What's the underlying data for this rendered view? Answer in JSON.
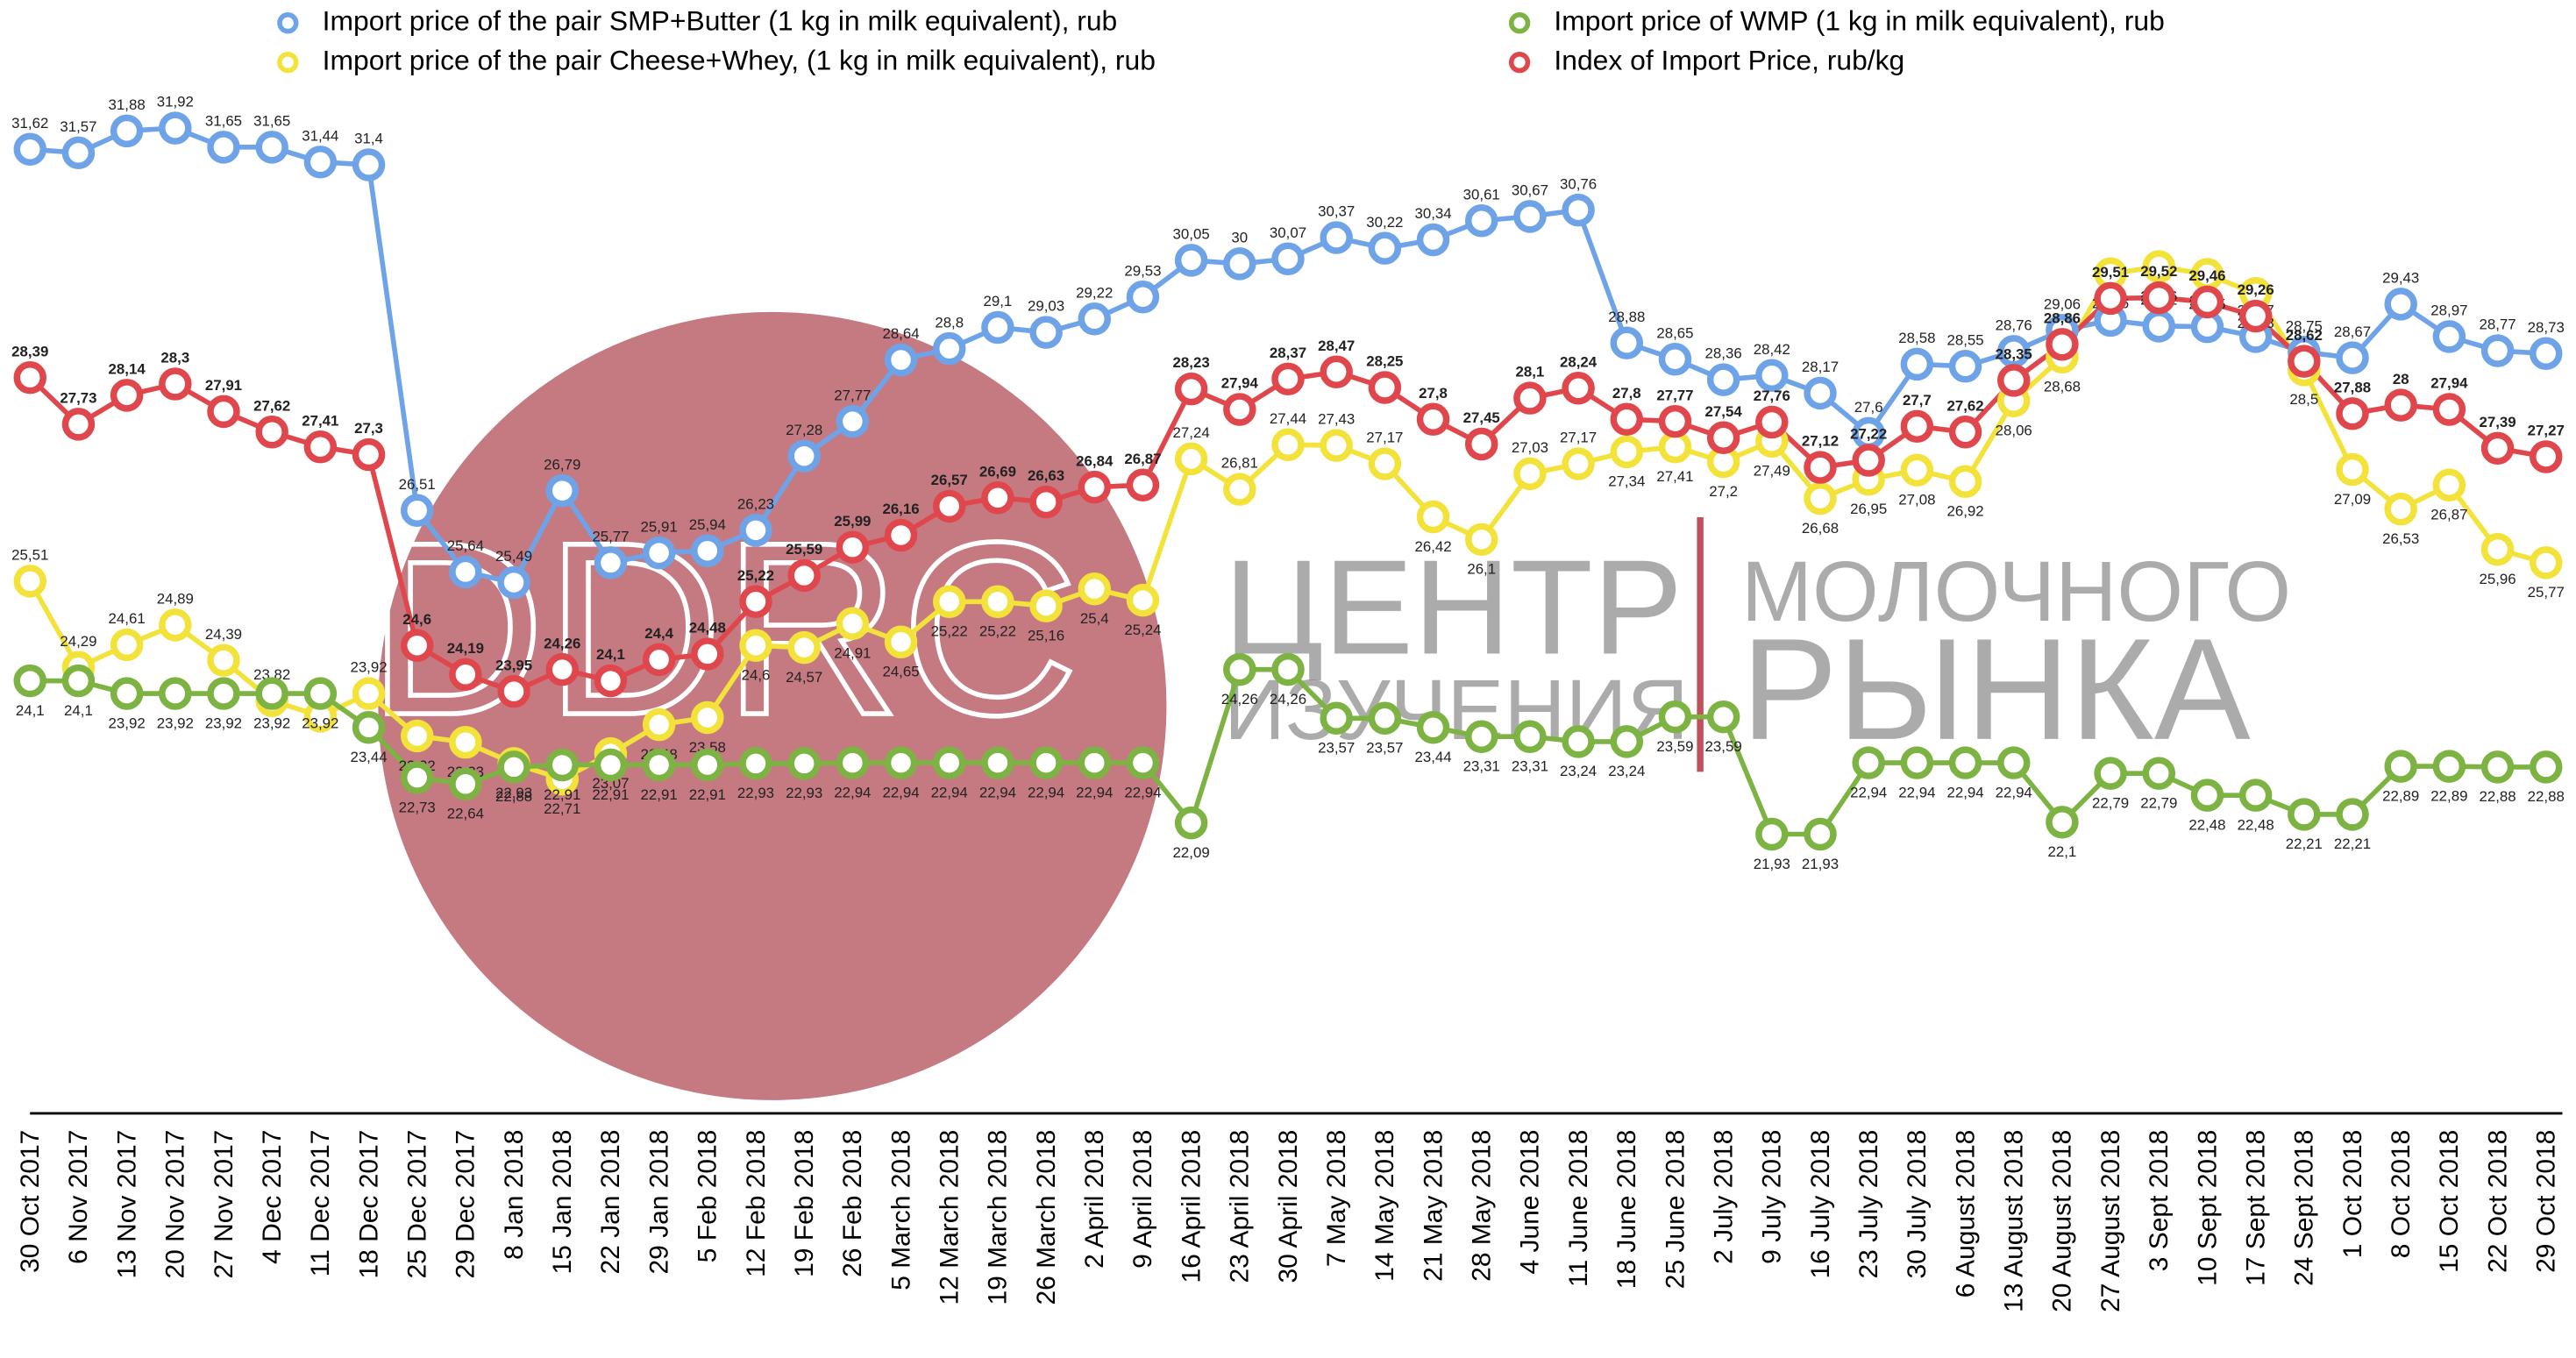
{
  "chart_data": {
    "type": "line",
    "watermark": {
      "logo": "DDRC",
      "line1": "ЦЕНТР",
      "line2": "ИЗУЧЕНИЯ",
      "line3": "МОЛОЧНОГО",
      "line4": "РЫНКА"
    },
    "categories": [
      "30 Oct 2017",
      "6 Nov 2017",
      "13 Nov 2017",
      "20 Nov 2017",
      "27 Nov 2017",
      "4 Dec 2017",
      "11 Dec 2017",
      "18 Dec 2017",
      "25 Dec 2017",
      "29 Dec 2017",
      "8 Jan 2018",
      "15 Jan 2018",
      "22 Jan 2018",
      "29 Jan 2018",
      "5 Feb 2018",
      "12 Feb 2018",
      "19 Feb 2018",
      "26 Feb 2018",
      "5 March 2018",
      "12 March 2018",
      "19 March 2018",
      "26 March 2018",
      "2 April 2018",
      "9 April 2018",
      "16 April 2018",
      "23 April 2018",
      "30 April 2018",
      "7 May 2018",
      "14 May 2018",
      "21 May 2018",
      "28 May 2018",
      "4 June 2018",
      "11 June 2018",
      "18 June 2018",
      "25 June 2018",
      "2 July 2018",
      "9 July 2018",
      "16 July 2018",
      "23 July 2018",
      "30 July 2018",
      "6 August 2018",
      "13 August 2018",
      "20 August 2018",
      "27 August 2018",
      "3 Sept 2018",
      "10 Sept 2018",
      "17 Sept 2018",
      "24 Sept 2018",
      "1 Oct 2018",
      "8 Oct 2018",
      "15 Oct 2018",
      "22 Oct 2018",
      "29 Oct 2018"
    ],
    "series": [
      {
        "name": "Import price of the pair SMP+Butter (1 kg in milk equivalent), rub",
        "color": "#6fa3e8",
        "values": [
          31.62,
          31.57,
          31.88,
          31.92,
          31.65,
          31.65,
          31.44,
          31.4,
          26.51,
          25.64,
          25.49,
          26.79,
          25.77,
          25.91,
          25.94,
          26.23,
          27.28,
          27.77,
          28.64,
          28.8,
          29.1,
          29.03,
          29.22,
          29.53,
          30.05,
          30,
          30.07,
          30.37,
          30.22,
          30.34,
          30.61,
          30.67,
          30.76,
          28.88,
          28.65,
          28.36,
          28.42,
          28.17,
          27.6,
          28.58,
          28.55,
          28.76,
          29.06,
          29.2,
          29.12,
          29.11,
          28.97,
          28.75,
          28.67,
          29.43,
          28.97,
          28.77,
          28.73
        ],
        "value_labels": [
          "31,62",
          "31,57",
          "31,88",
          "31,92",
          "31,65",
          "31,65",
          "31,44",
          "31,4",
          "26,51",
          "25,64",
          "25,49",
          "26,79",
          "25,77",
          "25,91",
          "25,94",
          "26,23",
          "27,28",
          "27,77",
          "28,64",
          "28,8",
          "29,1",
          "29,03",
          "29,22",
          "29,53",
          "30,05",
          "30",
          "30,07",
          "30,37",
          "30,22",
          "30,34",
          "30,61",
          "30,67",
          "30,76",
          "28,88",
          "28,65",
          "28,36",
          "28,42",
          "28,17",
          "27,6",
          "28,58",
          "28,55",
          "28,76",
          "29,06",
          "29,2",
          "29,12",
          "29,11",
          "28,97",
          "28,75",
          "28,67",
          "29,43",
          "28,97",
          "28,77",
          "28,73"
        ]
      },
      {
        "name": "Import price of the pair Cheese+Whey,  (1 kg in milk equivalent), rub",
        "color": "#f2e23a",
        "values": [
          25.51,
          24.29,
          24.61,
          24.89,
          24.39,
          23.82,
          23.6,
          23.92,
          23.32,
          23.23,
          22.93,
          22.71,
          23.07,
          23.48,
          23.58,
          24.6,
          24.57,
          24.91,
          24.65,
          25.22,
          25.22,
          25.16,
          25.4,
          25.24,
          27.24,
          26.81,
          27.44,
          27.43,
          27.17,
          26.42,
          26.1,
          27.03,
          27.17,
          27.34,
          27.41,
          27.2,
          27.49,
          26.68,
          26.95,
          27.08,
          26.92,
          28.06,
          28.68,
          29.86,
          29.96,
          29.85,
          29.58,
          28.5,
          27.09,
          26.53,
          26.87,
          25.96,
          25.77
        ],
        "value_labels": [
          "25,51",
          "24,29",
          "24,61",
          "24,89",
          "24,39",
          "23,82",
          "23,6",
          "23,92",
          "23,32",
          "23,23",
          "22,93",
          "22,71",
          "23,07",
          "23,48",
          "23,58",
          "24,6",
          "24,57",
          "24,91",
          "24,65",
          "25,22",
          "25,22",
          "25,16",
          "25,4",
          "25,24",
          "27,24",
          "26,81",
          "27,44",
          "27,43",
          "27,17",
          "26,42",
          "26,1",
          "27,03",
          "27,17",
          "27,34",
          "27,41",
          "27,2",
          "27,49",
          "26,68",
          "26,95",
          "27,08",
          "26,92",
          "28,06",
          "28,68",
          "29,86",
          "29,96",
          "29,85",
          "29,58",
          "28,5",
          "27,09",
          "26,53",
          "26,87",
          "25,96",
          "25,77"
        ]
      },
      {
        "name": "Import price of WMP (1 kg in milk equivalent), rub",
        "color": "#7cb342",
        "values": [
          24.1,
          24.1,
          23.92,
          23.92,
          23.92,
          23.92,
          23.92,
          23.44,
          22.73,
          22.64,
          22.88,
          22.91,
          22.91,
          22.91,
          22.91,
          22.93,
          22.93,
          22.94,
          22.94,
          22.94,
          22.94,
          22.94,
          22.94,
          22.94,
          22.09,
          24.26,
          24.26,
          23.57,
          23.57,
          23.44,
          23.31,
          23.31,
          23.24,
          23.24,
          23.59,
          23.59,
          21.93,
          21.93,
          22.94,
          22.94,
          22.94,
          22.94,
          22.1,
          22.79,
          22.79,
          22.48,
          22.48,
          22.21,
          22.21,
          22.89,
          22.89,
          22.88,
          22.88
        ],
        "value_labels": [
          "24,1",
          "24,1",
          "23,92",
          "23,92",
          "23,92",
          "23,92",
          "23,92",
          "23,44",
          "22,73",
          "22,64",
          "22,88",
          "22,91",
          "22,91",
          "22,91",
          "22,91",
          "22,93",
          "22,93",
          "22,94",
          "22,94",
          "22,94",
          "22,94",
          "22,94",
          "22,94",
          "22,94",
          "22,09",
          "24,26",
          "24,26",
          "23,57",
          "23,57",
          "23,44",
          "23,31",
          "23,31",
          "23,24",
          "23,24",
          "23,59",
          "23,59",
          "21,93",
          "21,93",
          "22,94",
          "22,94",
          "22,94",
          "22,94",
          "22,1",
          "22,79",
          "22,79",
          "22,48",
          "22,48",
          "22,21",
          "22,21",
          "22,89",
          "22,89",
          "22,88",
          "22,88"
        ]
      },
      {
        "name": "Index of Import Price, rub/kg",
        "color": "#e0474c",
        "values": [
          28.39,
          27.73,
          28.14,
          28.3,
          27.91,
          27.62,
          27.41,
          27.3,
          24.6,
          24.19,
          23.95,
          24.26,
          24.1,
          24.4,
          24.48,
          25.22,
          25.59,
          25.99,
          26.16,
          26.57,
          26.69,
          26.63,
          26.84,
          26.87,
          28.23,
          27.94,
          28.37,
          28.47,
          28.25,
          27.8,
          27.45,
          28.1,
          28.24,
          27.8,
          27.77,
          27.54,
          27.76,
          27.12,
          27.22,
          27.7,
          27.62,
          28.35,
          28.86,
          29.51,
          29.52,
          29.46,
          29.26,
          28.62,
          27.88,
          28,
          27.94,
          27.39,
          27.27
        ],
        "value_labels": [
          "28,39",
          "27,73",
          "28,14",
          "28,3",
          "27,91",
          "27,62",
          "27,41",
          "27,3",
          "24,6",
          "24,19",
          "23,95",
          "24,26",
          "24,1",
          "24,4",
          "24,48",
          "25,22",
          "25,59",
          "25,99",
          "26,16",
          "26,57",
          "26,69",
          "26,63",
          "26,84",
          "26,87",
          "28,23",
          "27,94",
          "28,37",
          "28,47",
          "28,25",
          "27,8",
          "27,45",
          "28,1",
          "28,24",
          "27,8",
          "27,77",
          "27,54",
          "27,76",
          "27,12",
          "27,22",
          "27,7",
          "27,62",
          "28,35",
          "28,86",
          "29,51",
          "29,52",
          "29,46",
          "29,26",
          "28,62",
          "27,88",
          "28",
          "27,94",
          "27,39",
          "27,27"
        ]
      }
    ]
  }
}
